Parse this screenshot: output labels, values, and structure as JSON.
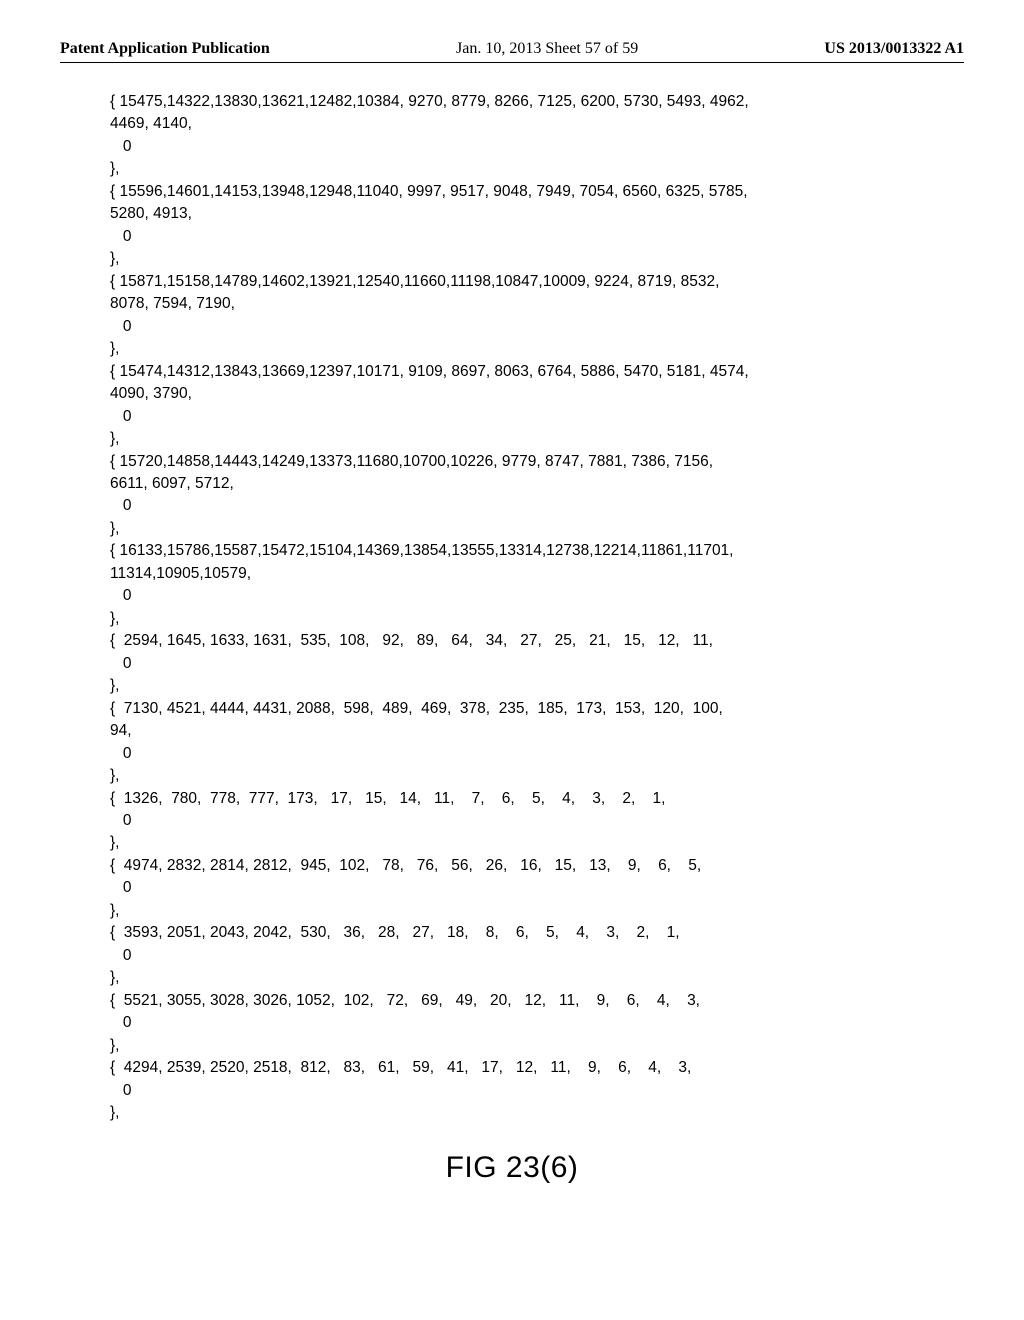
{
  "header": {
    "publication": "Patent Application Publication",
    "date": "Jan. 10, 2013  Sheet 57 of 59",
    "pubno": "US 2013/0013322 A1"
  },
  "code": "{ 15475,14322,13830,13621,12482,10384, 9270, 8779, 8266, 7125, 6200, 5730, 5493, 4962,\n4469, 4140,\n   0\n},\n{ 15596,14601,14153,13948,12948,11040, 9997, 9517, 9048, 7949, 7054, 6560, 6325, 5785,\n5280, 4913,\n   0\n},\n{ 15871,15158,14789,14602,13921,12540,11660,11198,10847,10009, 9224, 8719, 8532,\n8078, 7594, 7190,\n   0\n},\n{ 15474,14312,13843,13669,12397,10171, 9109, 8697, 8063, 6764, 5886, 5470, 5181, 4574,\n4090, 3790,\n   0\n},\n{ 15720,14858,14443,14249,13373,11680,10700,10226, 9779, 8747, 7881, 7386, 7156,\n6611, 6097, 5712,\n   0\n},\n{ 16133,15786,15587,15472,15104,14369,13854,13555,13314,12738,12214,11861,11701,\n11314,10905,10579,\n   0\n},\n{  2594, 1645, 1633, 1631,  535,  108,   92,   89,   64,   34,   27,   25,   21,   15,   12,   11,\n   0\n},\n{  7130, 4521, 4444, 4431, 2088,  598,  489,  469,  378,  235,  185,  173,  153,  120,  100,\n94,\n   0\n},\n{  1326,  780,  778,  777,  173,   17,   15,   14,   11,    7,    6,    5,    4,    3,    2,    1,\n   0\n},\n{  4974, 2832, 2814, 2812,  945,  102,   78,   76,   56,   26,   16,   15,   13,    9,    6,    5,\n   0\n},\n{  3593, 2051, 2043, 2042,  530,   36,   28,   27,   18,    8,    6,    5,    4,    3,    2,    1,\n   0\n},\n{  5521, 3055, 3028, 3026, 1052,  102,   72,   69,   49,   20,   12,   11,    9,    6,    4,    3,\n   0\n},\n{  4294, 2539, 2520, 2518,  812,   83,   61,   59,   41,   17,   12,   11,    9,    6,    4,    3,\n   0\n},",
  "figure_label": "FIG 23(6)"
}
